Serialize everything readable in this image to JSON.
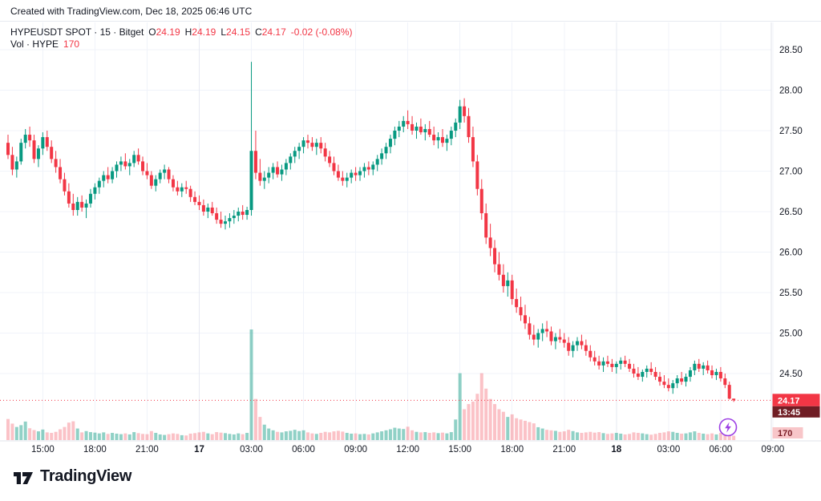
{
  "watermark": {
    "text": "Created with TradingView.com, Dec 18, 2025 06:46 UTC"
  },
  "legend": {
    "title": "HYPEUSDT SPOT · 15 · Bitget",
    "fields": [
      {
        "label": "O",
        "value": "24.19"
      },
      {
        "label": "H",
        "value": "24.19"
      },
      {
        "label": "L",
        "value": "24.15"
      },
      {
        "label": "C",
        "value": "24.17"
      }
    ],
    "change": "-0.02 (-0.08%)",
    "vol_label": "Vol · HYPE",
    "vol_value": "170"
  },
  "footer": {
    "brand": "TradingView"
  },
  "colors": {
    "up": "#089981",
    "down": "#f23645",
    "vol_up": "rgba(8,153,129,0.45)",
    "vol_down": "rgba(242,54,69,0.30)",
    "grid": "#f0f3fa",
    "axis_line": "#e0e3eb",
    "text": "#131722",
    "price_badge_bg": "#f23645",
    "countdown_bg": "#6f1d24",
    "volume_badge_bg": "#f8c6c9",
    "volume_badge_text": "#7a1e26",
    "bolt": "#9c3fe4"
  },
  "chart_data": {
    "type": "candlestick",
    "symbol": "HYPEUSDT SPOT",
    "exchange": "Bitget",
    "interval": "15",
    "title": "HYPEUSDT SPOT · 15 · Bitget",
    "legend_ohlc": {
      "o": 24.19,
      "h": 24.19,
      "l": 24.15,
      "c": 24.17,
      "change": -0.02,
      "change_pct": -0.08
    },
    "last": {
      "price": "24.17",
      "countdown": "13:45",
      "volume": "170"
    },
    "price_ticks": [
      28.5,
      28.0,
      27.5,
      27.0,
      26.5,
      26.0,
      25.5,
      25.0,
      24.5
    ],
    "ylim": [
      24.05,
      28.66
    ],
    "grid": true,
    "time_ticks": [
      {
        "i": 8,
        "label": "15:00",
        "bold": false
      },
      {
        "i": 20,
        "label": "18:00",
        "bold": false
      },
      {
        "i": 32,
        "label": "21:00",
        "bold": false
      },
      {
        "i": 44,
        "label": "17",
        "bold": true
      },
      {
        "i": 56,
        "label": "03:00",
        "bold": false
      },
      {
        "i": 68,
        "label": "06:00",
        "bold": false
      },
      {
        "i": 80,
        "label": "09:00",
        "bold": false
      },
      {
        "i": 92,
        "label": "12:00",
        "bold": false
      },
      {
        "i": 104,
        "label": "15:00",
        "bold": false
      },
      {
        "i": 116,
        "label": "18:00",
        "bold": false
      },
      {
        "i": 128,
        "label": "21:00",
        "bold": false
      },
      {
        "i": 140,
        "label": "18",
        "bold": true
      },
      {
        "i": 152,
        "label": "03:00",
        "bold": false
      },
      {
        "i": 164,
        "label": "06:00",
        "bold": false
      },
      {
        "i": 176,
        "label": "09:00",
        "bold": false
      }
    ],
    "candles": [
      [
        27.35,
        27.45,
        27.15,
        27.2,
        820
      ],
      [
        27.2,
        27.3,
        26.95,
        27.02,
        640
      ],
      [
        27.02,
        27.18,
        26.92,
        27.12,
        510
      ],
      [
        27.12,
        27.4,
        27.08,
        27.35,
        580
      ],
      [
        27.35,
        27.52,
        27.28,
        27.45,
        720
      ],
      [
        27.45,
        27.55,
        27.3,
        27.38,
        460
      ],
      [
        27.38,
        27.45,
        27.1,
        27.15,
        390
      ],
      [
        27.15,
        27.32,
        27.05,
        27.28,
        340
      ],
      [
        27.28,
        27.48,
        27.2,
        27.42,
        410
      ],
      [
        27.42,
        27.5,
        27.25,
        27.3,
        300
      ],
      [
        27.3,
        27.38,
        27.1,
        27.15,
        280
      ],
      [
        27.15,
        27.25,
        26.98,
        27.05,
        320
      ],
      [
        27.05,
        27.15,
        26.85,
        26.9,
        420
      ],
      [
        26.9,
        26.98,
        26.7,
        26.75,
        510
      ],
      [
        26.75,
        26.85,
        26.55,
        26.6,
        680
      ],
      [
        26.6,
        26.72,
        26.45,
        26.52,
        730
      ],
      [
        26.52,
        26.68,
        26.45,
        26.62,
        450
      ],
      [
        26.62,
        26.7,
        26.5,
        26.55,
        300
      ],
      [
        26.55,
        26.65,
        26.42,
        26.6,
        350
      ],
      [
        26.6,
        26.78,
        26.55,
        26.72,
        310
      ],
      [
        26.72,
        26.85,
        26.65,
        26.8,
        290
      ],
      [
        26.8,
        26.92,
        26.72,
        26.88,
        260
      ],
      [
        26.88,
        27.0,
        26.8,
        26.95,
        300
      ],
      [
        26.95,
        27.05,
        26.85,
        26.9,
        240
      ],
      [
        26.9,
        27.05,
        26.85,
        27.0,
        280
      ],
      [
        27.0,
        27.12,
        26.92,
        27.08,
        250
      ],
      [
        27.08,
        27.18,
        27.0,
        27.12,
        230
      ],
      [
        27.12,
        27.22,
        27.02,
        27.06,
        260
      ],
      [
        27.06,
        27.15,
        26.95,
        27.1,
        220
      ],
      [
        27.1,
        27.25,
        27.05,
        27.2,
        310
      ],
      [
        27.2,
        27.28,
        27.08,
        27.12,
        270
      ],
      [
        27.12,
        27.18,
        26.95,
        27.0,
        240
      ],
      [
        27.0,
        27.1,
        26.9,
        26.95,
        230
      ],
      [
        26.95,
        27.0,
        26.78,
        26.82,
        350
      ],
      [
        26.82,
        26.95,
        26.75,
        26.9,
        280
      ],
      [
        26.9,
        27.02,
        26.85,
        26.98,
        220
      ],
      [
        26.98,
        27.08,
        26.9,
        27.02,
        200
      ],
      [
        27.02,
        27.05,
        26.85,
        26.9,
        230
      ],
      [
        26.9,
        26.95,
        26.75,
        26.8,
        260
      ],
      [
        26.8,
        26.88,
        26.7,
        26.75,
        240
      ],
      [
        26.75,
        26.85,
        26.68,
        26.8,
        190
      ],
      [
        26.8,
        26.88,
        26.72,
        26.78,
        180
      ],
      [
        26.78,
        26.82,
        26.62,
        26.68,
        250
      ],
      [
        26.68,
        26.75,
        26.58,
        26.62,
        270
      ],
      [
        26.62,
        26.7,
        26.52,
        26.58,
        300
      ],
      [
        26.58,
        26.65,
        26.45,
        26.5,
        320
      ],
      [
        26.5,
        26.6,
        26.42,
        26.55,
        260
      ],
      [
        26.55,
        26.62,
        26.45,
        26.48,
        230
      ],
      [
        26.48,
        26.55,
        26.35,
        26.4,
        310
      ],
      [
        26.4,
        26.5,
        26.3,
        26.35,
        290
      ],
      [
        26.35,
        26.45,
        26.28,
        26.38,
        270
      ],
      [
        26.38,
        26.48,
        26.3,
        26.42,
        240
      ],
      [
        26.42,
        26.52,
        26.35,
        26.45,
        220
      ],
      [
        26.45,
        26.55,
        26.38,
        26.5,
        260
      ],
      [
        26.5,
        26.58,
        26.4,
        26.46,
        230
      ],
      [
        26.46,
        26.56,
        26.4,
        26.52,
        280
      ],
      [
        26.52,
        28.35,
        26.45,
        27.25,
        4300
      ],
      [
        27.25,
        27.5,
        26.9,
        26.98,
        1600
      ],
      [
        26.98,
        27.15,
        26.82,
        26.88,
        900
      ],
      [
        26.88,
        27.0,
        26.78,
        26.92,
        600
      ],
      [
        26.92,
        27.05,
        26.85,
        26.98,
        450
      ],
      [
        26.98,
        27.1,
        26.9,
        27.05,
        380
      ],
      [
        27.05,
        27.12,
        26.92,
        26.96,
        320
      ],
      [
        26.96,
        27.08,
        26.88,
        27.02,
        300
      ],
      [
        27.02,
        27.15,
        26.95,
        27.1,
        340
      ],
      [
        27.1,
        27.22,
        27.02,
        27.18,
        360
      ],
      [
        27.18,
        27.3,
        27.1,
        27.25,
        400
      ],
      [
        27.25,
        27.35,
        27.15,
        27.3,
        350
      ],
      [
        27.3,
        27.42,
        27.22,
        27.38,
        380
      ],
      [
        27.38,
        27.45,
        27.28,
        27.35,
        300
      ],
      [
        27.35,
        27.42,
        27.25,
        27.3,
        260
      ],
      [
        27.3,
        27.4,
        27.2,
        27.35,
        240
      ],
      [
        27.35,
        27.42,
        27.22,
        27.28,
        280
      ],
      [
        27.28,
        27.35,
        27.12,
        27.18,
        320
      ],
      [
        27.18,
        27.25,
        27.05,
        27.1,
        300
      ],
      [
        27.1,
        27.18,
        26.95,
        27.0,
        340
      ],
      [
        27.0,
        27.08,
        26.88,
        26.92,
        360
      ],
      [
        26.92,
        27.0,
        26.82,
        26.88,
        330
      ],
      [
        26.88,
        26.98,
        26.8,
        26.92,
        280
      ],
      [
        26.92,
        27.02,
        26.85,
        26.98,
        250
      ],
      [
        26.98,
        27.05,
        26.88,
        26.95,
        260
      ],
      [
        26.95,
        27.05,
        26.88,
        27.0,
        230
      ],
      [
        27.0,
        27.1,
        26.92,
        27.05,
        240
      ],
      [
        27.05,
        27.12,
        26.95,
        27.02,
        220
      ],
      [
        27.02,
        27.12,
        26.95,
        27.08,
        260
      ],
      [
        27.08,
        27.2,
        27.0,
        27.15,
        300
      ],
      [
        27.15,
        27.28,
        27.08,
        27.22,
        340
      ],
      [
        27.22,
        27.35,
        27.15,
        27.3,
        380
      ],
      [
        27.3,
        27.45,
        27.22,
        27.4,
        420
      ],
      [
        27.4,
        27.55,
        27.32,
        27.5,
        480
      ],
      [
        27.5,
        27.62,
        27.42,
        27.55,
        450
      ],
      [
        27.55,
        27.68,
        27.48,
        27.62,
        430
      ],
      [
        27.62,
        27.75,
        27.52,
        27.58,
        520
      ],
      [
        27.58,
        27.68,
        27.45,
        27.5,
        380
      ],
      [
        27.5,
        27.6,
        27.4,
        27.55,
        320
      ],
      [
        27.55,
        27.65,
        27.45,
        27.48,
        300
      ],
      [
        27.48,
        27.58,
        27.38,
        27.52,
        310
      ],
      [
        27.52,
        27.62,
        27.42,
        27.45,
        280
      ],
      [
        27.45,
        27.55,
        27.32,
        27.38,
        300
      ],
      [
        27.38,
        27.48,
        27.28,
        27.42,
        270
      ],
      [
        27.42,
        27.52,
        27.3,
        27.35,
        290
      ],
      [
        27.35,
        27.45,
        27.25,
        27.4,
        260
      ],
      [
        27.4,
        27.55,
        27.32,
        27.5,
        310
      ],
      [
        27.5,
        27.65,
        27.42,
        27.6,
        800
      ],
      [
        27.6,
        27.88,
        27.52,
        27.8,
        2600
      ],
      [
        27.8,
        27.9,
        27.6,
        27.68,
        1200
      ],
      [
        27.68,
        27.78,
        27.35,
        27.42,
        1400
      ],
      [
        27.42,
        27.55,
        27.05,
        27.12,
        1500
      ],
      [
        27.12,
        27.2,
        26.7,
        26.78,
        1800
      ],
      [
        26.78,
        26.9,
        26.4,
        26.48,
        2600
      ],
      [
        26.48,
        26.6,
        26.1,
        26.18,
        2000
      ],
      [
        26.18,
        26.35,
        25.95,
        26.05,
        1600
      ],
      [
        26.05,
        26.15,
        25.75,
        25.85,
        1400
      ],
      [
        25.85,
        26.0,
        25.65,
        25.72,
        1200
      ],
      [
        25.72,
        25.85,
        25.5,
        25.58,
        1100
      ],
      [
        25.58,
        25.75,
        25.45,
        25.65,
        900
      ],
      [
        25.65,
        25.72,
        25.35,
        25.42,
        1000
      ],
      [
        25.42,
        25.55,
        25.25,
        25.32,
        850
      ],
      [
        25.32,
        25.45,
        25.15,
        25.22,
        800
      ],
      [
        25.22,
        25.35,
        25.05,
        25.12,
        750
      ],
      [
        25.12,
        25.2,
        24.92,
        24.98,
        700
      ],
      [
        24.98,
        25.1,
        24.85,
        24.92,
        650
      ],
      [
        24.92,
        25.05,
        24.82,
        25.0,
        500
      ],
      [
        25.0,
        25.12,
        24.9,
        25.05,
        450
      ],
      [
        25.05,
        25.15,
        24.95,
        25.02,
        400
      ],
      [
        25.02,
        25.08,
        24.85,
        24.9,
        380
      ],
      [
        24.9,
        25.0,
        24.8,
        24.95,
        360
      ],
      [
        24.95,
        25.05,
        24.88,
        24.92,
        320
      ],
      [
        24.92,
        25.0,
        24.82,
        24.88,
        340
      ],
      [
        24.88,
        24.95,
        24.72,
        24.78,
        400
      ],
      [
        24.78,
        24.9,
        24.7,
        24.85,
        350
      ],
      [
        24.85,
        24.95,
        24.78,
        24.9,
        300
      ],
      [
        24.9,
        24.98,
        24.8,
        24.85,
        280
      ],
      [
        24.85,
        24.92,
        24.72,
        24.78,
        300
      ],
      [
        24.78,
        24.85,
        24.65,
        24.7,
        320
      ],
      [
        24.7,
        24.78,
        24.6,
        24.65,
        290
      ],
      [
        24.65,
        24.72,
        24.55,
        24.6,
        310
      ],
      [
        24.6,
        24.7,
        24.52,
        24.65,
        270
      ],
      [
        24.65,
        24.72,
        24.58,
        24.62,
        240
      ],
      [
        24.62,
        24.68,
        24.52,
        24.58,
        260
      ],
      [
        24.58,
        24.65,
        24.5,
        24.62,
        280
      ],
      [
        24.62,
        24.7,
        24.55,
        24.66,
        250
      ],
      [
        24.66,
        24.72,
        24.58,
        24.62,
        220
      ],
      [
        24.62,
        24.68,
        24.52,
        24.56,
        240
      ],
      [
        24.56,
        24.62,
        24.45,
        24.5,
        300
      ],
      [
        24.5,
        24.58,
        24.42,
        24.46,
        280
      ],
      [
        24.46,
        24.55,
        24.4,
        24.52,
        260
      ],
      [
        24.52,
        24.6,
        24.45,
        24.56,
        230
      ],
      [
        24.56,
        24.64,
        24.48,
        24.52,
        210
      ],
      [
        24.52,
        24.58,
        24.42,
        24.46,
        240
      ],
      [
        24.46,
        24.52,
        24.35,
        24.4,
        280
      ],
      [
        24.4,
        24.48,
        24.32,
        24.36,
        300
      ],
      [
        24.36,
        24.44,
        24.28,
        24.32,
        340
      ],
      [
        24.32,
        24.42,
        24.25,
        24.38,
        320
      ],
      [
        24.38,
        24.48,
        24.32,
        24.44,
        280
      ],
      [
        24.44,
        24.52,
        24.36,
        24.4,
        250
      ],
      [
        24.4,
        24.5,
        24.34,
        24.46,
        260
      ],
      [
        24.46,
        24.58,
        24.4,
        24.54,
        300
      ],
      [
        24.54,
        24.66,
        24.48,
        24.62,
        340
      ],
      [
        24.62,
        24.68,
        24.52,
        24.56,
        280
      ],
      [
        24.56,
        24.64,
        24.48,
        24.6,
        250
      ],
      [
        24.6,
        24.66,
        24.5,
        24.54,
        230
      ],
      [
        24.54,
        24.6,
        24.44,
        24.48,
        260
      ],
      [
        24.48,
        24.56,
        24.42,
        24.52,
        220
      ],
      [
        24.52,
        24.58,
        24.4,
        24.44,
        280
      ],
      [
        24.44,
        24.5,
        24.32,
        24.36,
        300
      ],
      [
        24.36,
        24.4,
        24.18,
        24.19,
        320
      ],
      [
        24.19,
        24.19,
        24.15,
        24.17,
        170
      ]
    ]
  }
}
